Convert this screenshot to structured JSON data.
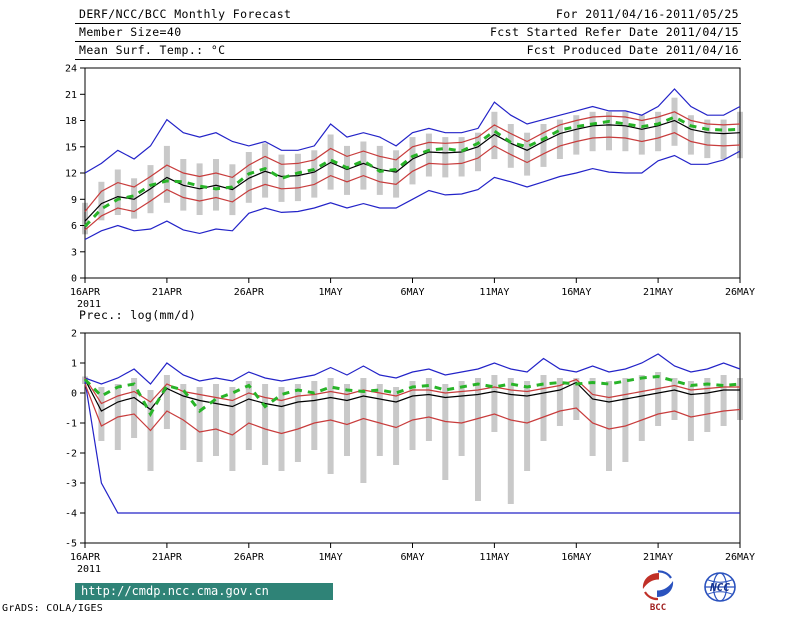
{
  "header": {
    "title": "DERF/NCC/BCC Monthly Forecast",
    "for_range": "For 2011/04/16-2011/05/25",
    "member_size": "Member Size=40",
    "fcst_started": "Fcst Started Refer Date 2011/04/15",
    "temp_label": "Mean Surf. Temp.: °C",
    "fcst_produced": "Fcst Produced Date 2011/04/16"
  },
  "footer": {
    "url": "http://cmdp.ncc.cma.gov.cn",
    "grads_credit": "GrADS: COLA/IGES",
    "logo_bcc": "BCC",
    "logo_ncc": "NCC"
  },
  "colors": {
    "blue": "#2323c8",
    "red": "#c83c3c",
    "black": "#000000",
    "green": "#28b428",
    "bars": "#c9c9c9",
    "footer_bg": "#2f8377"
  },
  "chart_data": [
    {
      "type": "line",
      "title": "Mean Surf. Temp.: °C",
      "ylabel": "°C",
      "x_tick_labels": [
        "16APR",
        "21APR",
        "26APR",
        "1MAY",
        "6MAY",
        "11MAY",
        "16MAY",
        "21MAY",
        "26MAY"
      ],
      "x_tick_positions": [
        0,
        5,
        10,
        15,
        20,
        25,
        30,
        35,
        40
      ],
      "x_year_label": "2011",
      "ylim": [
        0,
        24
      ],
      "yticks": [
        0,
        3,
        6,
        9,
        12,
        15,
        18,
        21,
        24
      ],
      "grid": false,
      "legend": "none",
      "bars": {
        "name": "ensemble-spread",
        "color": "#c9c9c9",
        "low": [
          5.0,
          6.6,
          7.2,
          6.8,
          7.4,
          8.6,
          7.7,
          7.2,
          7.7,
          7.2,
          8.6,
          9.2,
          8.7,
          8.8,
          9.2,
          10.1,
          9.5,
          10.1,
          9.5,
          9.2,
          10.7,
          11.6,
          11.5,
          11.6,
          12.2,
          13.6,
          12.6,
          11.7,
          12.7,
          13.6,
          14.1,
          14.5,
          14.6,
          14.5,
          14.1,
          14.5,
          15.1,
          14.1,
          13.7,
          13.6,
          13.7
        ],
        "high": [
          8.6,
          11.0,
          12.4,
          11.4,
          12.9,
          15.1,
          13.6,
          13.1,
          13.6,
          13.0,
          14.4,
          15.4,
          14.1,
          14.2,
          14.6,
          16.4,
          15.1,
          15.6,
          15.1,
          14.6,
          16.1,
          16.5,
          16.1,
          16.1,
          16.6,
          19.0,
          17.6,
          16.6,
          17.6,
          18.1,
          18.6,
          19.0,
          19.0,
          19.0,
          18.6,
          19.0,
          20.6,
          18.6,
          18.1,
          18.1,
          19.0
        ]
      },
      "series": [
        {
          "name": "ensemble-max",
          "color": "#2323c8",
          "values": [
            12.0,
            13.1,
            14.6,
            13.6,
            15.1,
            18.1,
            16.6,
            16.1,
            16.6,
            15.6,
            15.1,
            15.6,
            14.6,
            14.6,
            15.1,
            17.6,
            16.1,
            16.6,
            16.1,
            15.1,
            16.6,
            17.1,
            16.6,
            16.6,
            17.1,
            20.1,
            18.6,
            17.6,
            18.1,
            18.6,
            19.1,
            19.6,
            19.1,
            19.1,
            18.6,
            19.6,
            21.6,
            19.6,
            18.6,
            18.6,
            19.6
          ]
        },
        {
          "name": "ensemble-min",
          "color": "#2323c8",
          "values": [
            4.4,
            5.4,
            6.0,
            5.4,
            5.6,
            6.5,
            5.5,
            5.1,
            5.6,
            5.4,
            7.4,
            8.0,
            7.5,
            7.6,
            8.0,
            8.6,
            8.0,
            8.5,
            8.0,
            8.0,
            9.0,
            10.0,
            9.5,
            9.6,
            10.1,
            11.5,
            11.0,
            10.4,
            11.0,
            11.6,
            12.0,
            12.5,
            12.1,
            12.0,
            12.0,
            13.4,
            14.0,
            13.0,
            13.0,
            13.5,
            14.5
          ]
        },
        {
          "name": "upper-bound",
          "color": "#c83c3c",
          "values": [
            7.6,
            9.9,
            10.9,
            10.4,
            11.6,
            12.9,
            12.0,
            11.6,
            12.0,
            11.5,
            12.9,
            13.9,
            13.0,
            13.1,
            13.5,
            14.8,
            13.9,
            14.5,
            13.9,
            13.5,
            15.0,
            15.5,
            15.4,
            15.5,
            16.1,
            17.5,
            16.5,
            15.6,
            16.6,
            17.5,
            18.0,
            18.4,
            18.5,
            18.4,
            18.0,
            18.4,
            19.0,
            18.0,
            17.6,
            17.5,
            17.6
          ]
        },
        {
          "name": "lower-bound",
          "color": "#c83c3c",
          "values": [
            5.5,
            7.1,
            8.0,
            7.6,
            8.8,
            10.1,
            9.2,
            8.8,
            9.2,
            8.7,
            10.0,
            10.7,
            10.2,
            10.3,
            10.7,
            11.7,
            11.0,
            11.7,
            11.0,
            10.7,
            12.2,
            13.1,
            13.0,
            13.1,
            13.7,
            15.1,
            14.1,
            13.2,
            14.2,
            15.1,
            15.6,
            16.0,
            16.1,
            16.0,
            15.6,
            16.0,
            16.6,
            15.6,
            15.2,
            15.1,
            15.2
          ]
        },
        {
          "name": "median",
          "color": "#000000",
          "values": [
            6.5,
            8.5,
            9.3,
            9.0,
            10.2,
            11.5,
            10.6,
            10.2,
            10.6,
            10.1,
            11.4,
            12.2,
            11.6,
            11.7,
            12.1,
            13.2,
            12.4,
            13.1,
            12.4,
            12.1,
            13.6,
            14.4,
            14.3,
            14.4,
            15.0,
            16.4,
            15.4,
            14.6,
            15.6,
            16.5,
            17.0,
            17.4,
            17.5,
            17.4,
            17.0,
            17.4,
            18.0,
            17.0,
            16.6,
            16.5,
            16.6
          ]
        },
        {
          "name": "ensemble-mean",
          "color": "#28b428",
          "style": "dashed",
          "values": [
            5.9,
            7.9,
            9.0,
            9.4,
            10.6,
            11.1,
            11.0,
            10.5,
            10.2,
            10.4,
            11.9,
            12.5,
            11.4,
            12.0,
            12.4,
            13.5,
            12.6,
            13.4,
            12.2,
            12.4,
            13.9,
            14.6,
            14.8,
            14.5,
            15.4,
            16.8,
            15.5,
            15.0,
            15.9,
            16.9,
            17.3,
            17.6,
            17.9,
            17.6,
            17.3,
            17.6,
            18.4,
            17.4,
            17.0,
            16.9,
            17.0
          ]
        }
      ]
    },
    {
      "type": "line",
      "title": "Prec.: log(mm/d)",
      "ylabel": "log(mm/d)",
      "x_tick_labels": [
        "16APR",
        "21APR",
        "26APR",
        "1MAY",
        "6MAY",
        "11MAY",
        "16MAY",
        "21MAY",
        "26MAY"
      ],
      "x_tick_positions": [
        0,
        5,
        10,
        15,
        20,
        25,
        30,
        35,
        40
      ],
      "x_year_label": "2011",
      "ylim": [
        -5,
        2
      ],
      "yticks": [
        -5,
        -4,
        -3,
        -2,
        -1,
        0,
        1,
        2
      ],
      "grid": false,
      "legend": "none",
      "bars": {
        "name": "ensemble-spread",
        "color": "#c9c9c9",
        "low": [
          0.3,
          -1.6,
          -1.9,
          -1.5,
          -2.6,
          -1.2,
          -1.9,
          -2.3,
          -2.1,
          -2.6,
          -1.9,
          -2.4,
          -2.6,
          -2.3,
          -1.9,
          -2.7,
          -2.1,
          -3.0,
          -2.1,
          -2.4,
          -1.9,
          -1.6,
          -2.9,
          -2.1,
          -3.6,
          -1.3,
          -3.7,
          -2.6,
          -1.6,
          -1.1,
          -0.9,
          -2.1,
          -2.6,
          -2.3,
          -1.6,
          -1.1,
          -0.9,
          -1.6,
          -1.3,
          -1.1,
          -0.9
        ],
        "high": [
          0.55,
          0.2,
          0.3,
          0.5,
          0.1,
          0.6,
          0.3,
          0.2,
          0.3,
          0.2,
          0.4,
          0.3,
          0.2,
          0.3,
          0.4,
          0.5,
          0.3,
          0.5,
          0.3,
          0.2,
          0.4,
          0.5,
          0.3,
          0.4,
          0.5,
          0.6,
          0.5,
          0.4,
          0.6,
          0.5,
          0.5,
          0.5,
          0.4,
          0.5,
          0.6,
          0.7,
          0.5,
          0.4,
          0.5,
          0.6,
          0.5
        ]
      },
      "series": [
        {
          "name": "ensemble-max",
          "color": "#2323c8",
          "values": [
            0.5,
            0.3,
            0.5,
            0.8,
            0.3,
            1.0,
            0.6,
            0.4,
            0.5,
            0.4,
            0.7,
            0.5,
            0.4,
            0.5,
            0.6,
            0.85,
            0.6,
            0.9,
            0.6,
            0.5,
            0.7,
            0.8,
            0.6,
            0.7,
            0.8,
            1.0,
            0.8,
            0.7,
            1.15,
            0.8,
            0.7,
            0.9,
            0.7,
            0.8,
            1.0,
            1.3,
            0.9,
            0.7,
            0.8,
            1.0,
            0.8
          ]
        },
        {
          "name": "ensemble-min",
          "color": "#2323c8",
          "values": [
            0.4,
            -3.0,
            -4.0,
            -4.0,
            -4.0,
            -4.0,
            -4.0,
            -4.0,
            -4.0,
            -4.0,
            -4.0,
            -4.0,
            -4.0,
            -4.0,
            -4.0,
            -4.0,
            -4.0,
            -4.0,
            -4.0,
            -4.0,
            -4.0,
            -4.0,
            -4.0,
            -4.0,
            -4.0,
            -4.0,
            -4.0,
            -4.0,
            -4.0,
            -4.0,
            -4.0,
            -4.0,
            -4.0,
            -4.0,
            -4.0,
            -4.0,
            -4.0,
            -4.0,
            -4.0,
            -4.0,
            -4.0
          ]
        },
        {
          "name": "upper-bound",
          "color": "#c83c3c",
          "values": [
            0.5,
            -0.35,
            -0.1,
            0.05,
            -0.3,
            0.3,
            0.05,
            -0.05,
            -0.15,
            -0.25,
            0.0,
            -0.15,
            -0.25,
            -0.1,
            -0.05,
            0.05,
            -0.05,
            0.1,
            0.0,
            -0.1,
            0.1,
            0.1,
            0.0,
            0.05,
            0.1,
            0.2,
            0.1,
            0.05,
            0.15,
            0.25,
            0.45,
            -0.05,
            -0.15,
            -0.05,
            0.05,
            0.15,
            0.25,
            0.1,
            0.15,
            0.2,
            0.2
          ]
        },
        {
          "name": "lower-bound",
          "color": "#c83c3c",
          "values": [
            0.3,
            -1.1,
            -0.8,
            -0.7,
            -1.25,
            -0.6,
            -0.9,
            -1.3,
            -1.2,
            -1.4,
            -1.0,
            -1.2,
            -1.35,
            -1.2,
            -1.0,
            -0.9,
            -1.05,
            -0.85,
            -1.0,
            -1.15,
            -0.9,
            -0.8,
            -0.95,
            -1.0,
            -0.85,
            -0.7,
            -0.9,
            -1.0,
            -0.8,
            -0.6,
            -0.5,
            -1.0,
            -1.2,
            -1.1,
            -0.9,
            -0.7,
            -0.6,
            -0.8,
            -0.7,
            -0.6,
            -0.55
          ]
        },
        {
          "name": "median",
          "color": "#000000",
          "values": [
            0.45,
            -0.6,
            -0.3,
            -0.15,
            -0.55,
            0.15,
            -0.1,
            -0.25,
            -0.35,
            -0.45,
            -0.2,
            -0.35,
            -0.45,
            -0.3,
            -0.25,
            -0.15,
            -0.25,
            -0.1,
            -0.2,
            -0.3,
            -0.1,
            -0.05,
            -0.15,
            -0.1,
            -0.05,
            0.05,
            -0.05,
            -0.1,
            0.0,
            0.1,
            0.35,
            -0.2,
            -0.3,
            -0.2,
            -0.1,
            0.0,
            0.1,
            -0.05,
            0.0,
            0.1,
            0.1
          ]
        },
        {
          "name": "ensemble-mean",
          "color": "#28b428",
          "style": "dashed",
          "values": [
            0.45,
            -0.1,
            0.2,
            0.3,
            -0.7,
            0.25,
            0.1,
            -0.6,
            -0.2,
            0.0,
            0.25,
            -0.45,
            -0.05,
            0.1,
            0.0,
            0.2,
            0.1,
            0.05,
            0.1,
            0.0,
            0.2,
            0.25,
            0.1,
            0.2,
            0.3,
            0.2,
            0.3,
            0.2,
            0.3,
            0.35,
            0.3,
            0.35,
            0.3,
            0.4,
            0.5,
            0.55,
            0.4,
            0.25,
            0.3,
            0.25,
            0.3
          ]
        }
      ]
    }
  ]
}
